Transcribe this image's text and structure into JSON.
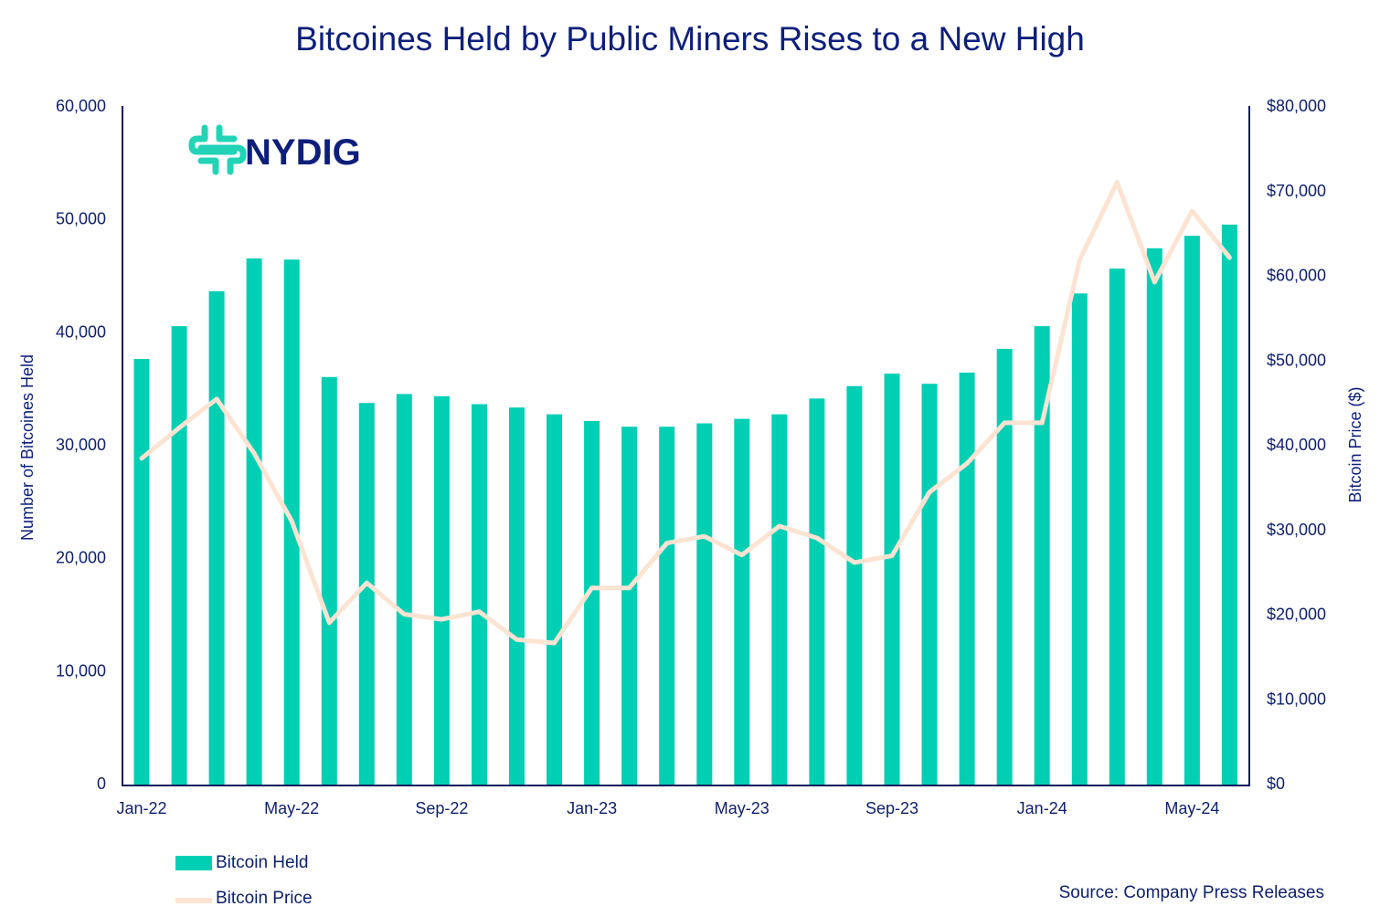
{
  "chart_data": {
    "type": "bar",
    "title": "Bitcoines Held by Public Miners Rises to a New High",
    "logo": "NYDIG",
    "source": "Source: Company Press Releases",
    "ylabel_left": "Number of Bitcoines Held",
    "ylabel_right": "Bitcoin Price ($)",
    "ylim_left": [
      0,
      60000
    ],
    "ylim_right": [
      0,
      80000
    ],
    "yticks_left": [
      "0",
      "10,000",
      "20,000",
      "30,000",
      "40,000",
      "50,000",
      "60,000"
    ],
    "yticks_right": [
      "$0",
      "$10,000",
      "$20,000",
      "$30,000",
      "$40,000",
      "$50,000",
      "$60,000",
      "$70,000",
      "$80,000"
    ],
    "xtick_labels": [
      "Jan-22",
      "May-22",
      "Sep-22",
      "Jan-23",
      "May-23",
      "Sep-23",
      "Jan-24",
      "May-24"
    ],
    "grid": false,
    "legend_position": "bottom-left",
    "categories": [
      "Jan-22",
      "Feb-22",
      "Mar-22",
      "Apr-22",
      "May-22",
      "Jun-22",
      "Jul-22",
      "Aug-22",
      "Sep-22",
      "Oct-22",
      "Nov-22",
      "Dec-22",
      "Jan-23",
      "Feb-23",
      "Mar-23",
      "Apr-23",
      "May-23",
      "Jun-23",
      "Jul-23",
      "Aug-23",
      "Sep-23",
      "Oct-23",
      "Nov-23",
      "Dec-23",
      "Jan-24",
      "Feb-24",
      "Mar-24",
      "Apr-24",
      "May-24",
      "Jun-24"
    ],
    "series": [
      {
        "name": "Bitcoin Held",
        "type": "bar",
        "axis": "left",
        "color": "#00cfb4",
        "values": [
          37600,
          40500,
          43600,
          46500,
          46400,
          36000,
          33700,
          34500,
          34300,
          33600,
          33300,
          32700,
          32100,
          31600,
          31600,
          31900,
          32300,
          32700,
          34100,
          35200,
          36300,
          35400,
          36400,
          38500,
          40500,
          43400,
          45600,
          47400,
          48500,
          49500
        ]
      },
      {
        "name": "Bitcoin Price",
        "type": "line",
        "axis": "right",
        "color": "#fde3d2",
        "values": [
          38400,
          42000,
          45400,
          39000,
          31000,
          19000,
          23700,
          20000,
          19400,
          20300,
          17000,
          16600,
          23100,
          23100,
          28400,
          29200,
          27000,
          30400,
          29000,
          26100,
          26900,
          34400,
          37800,
          42600,
          42600,
          61800,
          71000,
          59200,
          67600,
          62100
        ]
      }
    ]
  }
}
